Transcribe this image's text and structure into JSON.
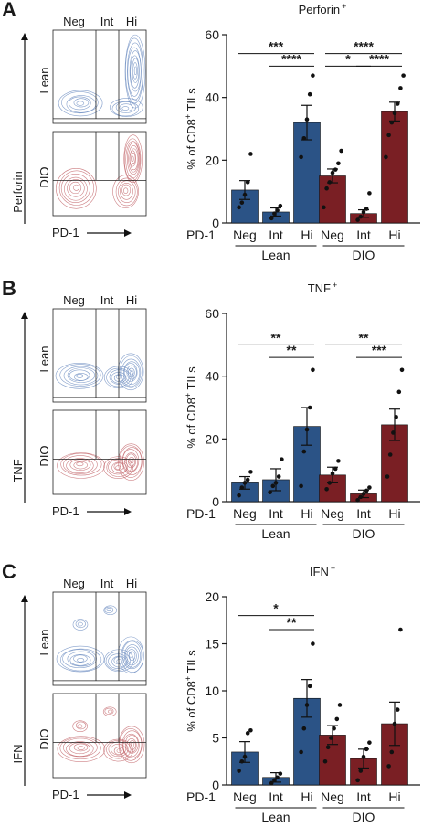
{
  "colors": {
    "lean": "#2b5386",
    "dio": "#7a1f24",
    "lean_contour": "#6f8ec2",
    "dio_contour": "#c46a6f",
    "axis": "#1a1a1a"
  },
  "panels": [
    {
      "letter": "A",
      "facs": {
        "gates": [
          "Neg",
          "Int",
          "Hi"
        ],
        "rows": [
          "Lean",
          "DIO"
        ],
        "y_label": "Perforin",
        "x_label": "PD-1"
      },
      "chart_data": {
        "type": "bar",
        "title": "Perforin",
        "title_sup": "+",
        "ylabel": "% of CD8",
        "ylabel_sup": "+",
        "ylabel_suffix": " TILs",
        "ylim": [
          0,
          60
        ],
        "yticks": [
          0,
          20,
          40,
          60
        ],
        "x_row_label": "PD-1",
        "categories": [
          "Neg",
          "Int",
          "Hi"
        ],
        "series": [
          {
            "name": "Lean",
            "means": [
              10.5,
              3.5,
              32
            ],
            "sem": [
              3,
              1.3,
              5.5
            ],
            "points": [
              [
                5,
                6.5,
                9,
                13,
                22
              ],
              [
                1.5,
                3,
                4,
                5.5
              ],
              [
                21,
                27,
                33,
                41,
                47
              ]
            ]
          },
          {
            "name": "DIO",
            "means": [
              15,
              3,
              35.5
            ],
            "sem": [
              2.2,
              1.2,
              3
            ],
            "points": [
              [
                5,
                11,
                13,
                16,
                17,
                19,
                23
              ],
              [
                1,
                2,
                3.5,
                4.5,
                9.5
              ],
              [
                21,
                28,
                32,
                35,
                38,
                43,
                47
              ]
            ]
          }
        ],
        "significance": [
          {
            "label": "***",
            "series": 0,
            "from": 0,
            "to": 2,
            "y": 54
          },
          {
            "label": "****",
            "series": 0,
            "from": 1,
            "to": 2,
            "y": 50
          },
          {
            "label": "****",
            "series": 1,
            "from": 0,
            "to": 2,
            "y": 54
          },
          {
            "label": "*",
            "series": 1,
            "from": 0,
            "to": 1,
            "y": 50
          },
          {
            "label": "****",
            "series": 1,
            "from": 1,
            "to": 2,
            "y": 50
          }
        ]
      }
    },
    {
      "letter": "B",
      "facs": {
        "gates": [
          "Neg",
          "Int",
          "Hi"
        ],
        "rows": [
          "Lean",
          "DIO"
        ],
        "y_label": "TNF",
        "x_label": "PD-1"
      },
      "chart_data": {
        "type": "bar",
        "title": "TNF",
        "title_sup": "+",
        "ylabel": "% of CD8",
        "ylabel_sup": "+",
        "ylabel_suffix": " TILs",
        "ylim": [
          0,
          60
        ],
        "yticks": [
          0,
          20,
          40,
          60
        ],
        "x_row_label": "PD-1",
        "categories": [
          "Neg",
          "Int",
          "Hi"
        ],
        "series": [
          {
            "name": "Lean",
            "means": [
              6,
              7,
              24
            ],
            "sem": [
              2,
              3.5,
              6
            ],
            "points": [
              [
                2,
                4.5,
                6,
                7,
                9.5
              ],
              [
                3,
                5,
                6,
                8,
                13.5
              ],
              [
                5,
                16,
                23,
                30,
                42
              ]
            ]
          },
          {
            "name": "DIO",
            "means": [
              8.5,
              2.5,
              24.5
            ],
            "sem": [
              2.5,
              1.2,
              5
            ],
            "points": [
              [
                4,
                6,
                9,
                10.5,
                13
              ],
              [
                0.5,
                1.5,
                2.5,
                3.5,
                4.5
              ],
              [
                8,
                15,
                22,
                27,
                35,
                42
              ]
            ]
          }
        ],
        "significance": [
          {
            "label": "**",
            "series": 0,
            "from": 0,
            "to": 2,
            "y": 50
          },
          {
            "label": "**",
            "series": 0,
            "from": 1,
            "to": 2,
            "y": 46
          },
          {
            "label": "**",
            "series": 1,
            "from": 0,
            "to": 2,
            "y": 50
          },
          {
            "label": "***",
            "series": 1,
            "from": 1,
            "to": 2,
            "y": 46
          }
        ]
      }
    },
    {
      "letter": "C",
      "facs": {
        "gates": [
          "Neg",
          "Int",
          "Hi"
        ],
        "rows": [
          "Lean",
          "DIO"
        ],
        "y_label": "IFN",
        "x_label": "PD-1"
      },
      "chart_data": {
        "type": "bar",
        "title": "IFN",
        "title_sup": "+",
        "ylabel": "% of CD8",
        "ylabel_sup": "+",
        "ylabel_suffix": " TILs",
        "ylim": [
          0,
          20
        ],
        "yticks": [
          0,
          5,
          10,
          15,
          20
        ],
        "x_row_label": "PD-1",
        "categories": [
          "Neg",
          "Int",
          "Hi"
        ],
        "series": [
          {
            "name": "Lean",
            "means": [
              3.5,
              0.8,
              9.2
            ],
            "sem": [
              1.1,
              0.5,
              2
            ],
            "points": [
              [
                1.5,
                2.5,
                3,
                5.5,
                5.8
              ],
              [
                0.2,
                0.5,
                0.8,
                1.2
              ],
              [
                3.5,
                6,
                8.5,
                10.5,
                15
              ]
            ]
          },
          {
            "name": "DIO",
            "means": [
              5.3,
              2.8,
              6.5
            ],
            "sem": [
              1,
              1,
              2.3
            ],
            "points": [
              [
                2.5,
                4,
                5,
                6,
                7,
                8.5
              ],
              [
                0.5,
                1.5,
                3,
                3.8,
                4.5
              ],
              [
                2,
                3.5,
                6.5,
                8,
                16.5
              ]
            ]
          }
        ],
        "significance": [
          {
            "label": "*",
            "series": 0,
            "from": 0,
            "to": 2,
            "y": 18
          },
          {
            "label": "**",
            "series": 0,
            "from": 1,
            "to": 2,
            "y": 16.5
          }
        ]
      }
    }
  ]
}
